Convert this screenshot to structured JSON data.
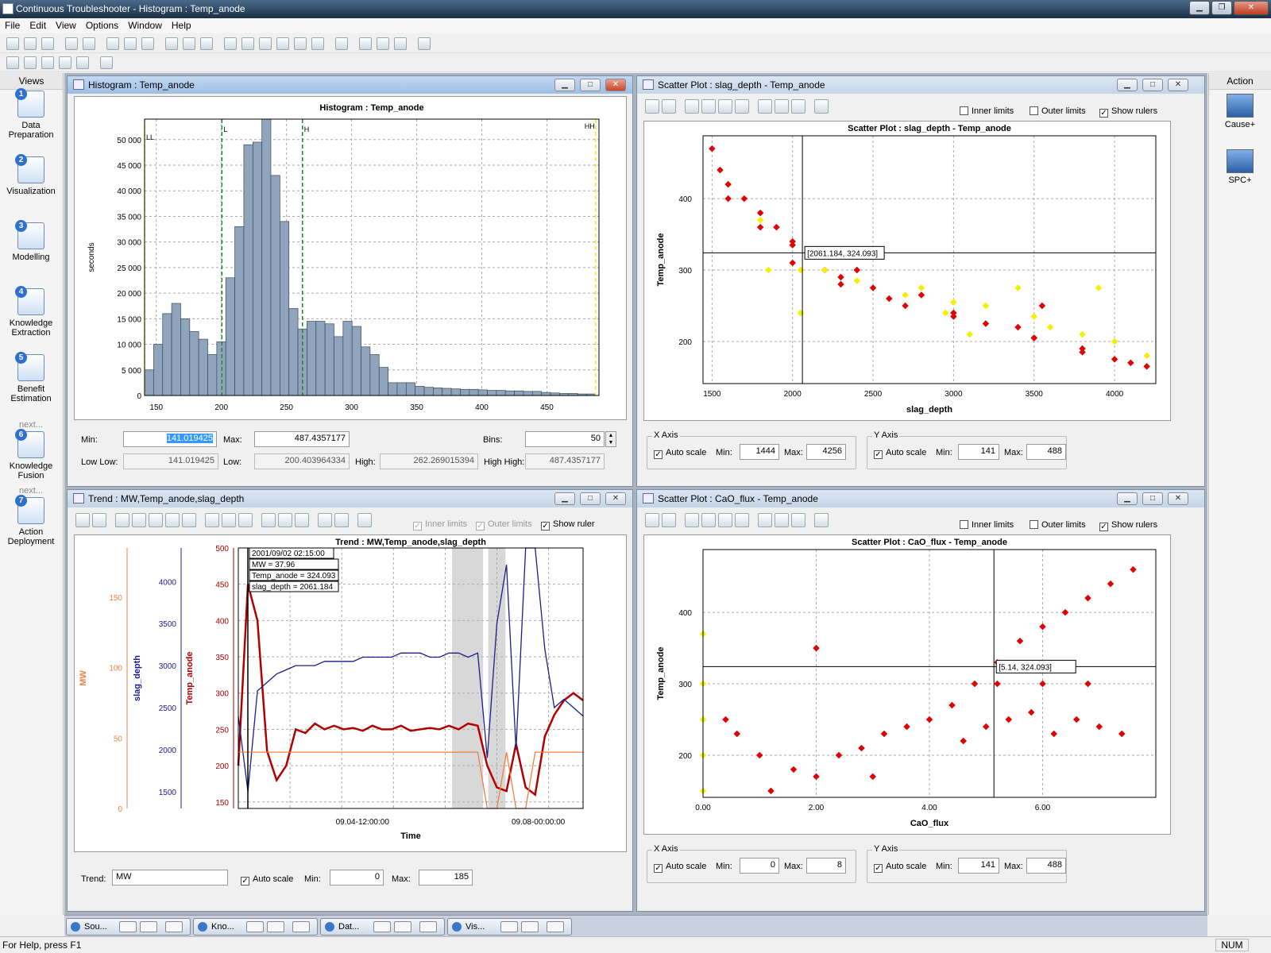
{
  "app": {
    "title": "Continuous Troubleshooter - Histogram : Temp_anode",
    "menus": [
      "File",
      "Edit",
      "View",
      "Options",
      "Window",
      "Help"
    ]
  },
  "views": {
    "header": "Views",
    "items": [
      {
        "num": "1",
        "label": "Data\nPreparation",
        "next": ""
      },
      {
        "num": "2",
        "label": "Visualization",
        "next": ""
      },
      {
        "num": "3",
        "label": "Modelling",
        "next": ""
      },
      {
        "num": "4",
        "label": "Knowledge\nExtraction",
        "next": ""
      },
      {
        "num": "5",
        "label": "Benefit\nEstimation",
        "next": ""
      },
      {
        "num": "6",
        "label": "Knowledge\nFusion",
        "next": "next..."
      },
      {
        "num": "7",
        "label": "Action\nDeployment",
        "next": "next..."
      }
    ]
  },
  "action": {
    "header": "Action",
    "items": [
      "Cause+",
      "SPC+"
    ]
  },
  "histogram": {
    "window_title": "Histogram : Temp_anode",
    "plot_title": "Histogram : Temp_anode",
    "ylabel": "seconds",
    "min_label": "Min:",
    "min_value": "141.019425",
    "max_label": "Max:",
    "max_value": "487.4357177",
    "bins_label": "Bins:",
    "bins_value": "50",
    "lowlow_label": "Low Low:",
    "lowlow_value": "141.019425",
    "low_label": "Low:",
    "low_value": "200.403964334",
    "high_label": "High:",
    "high_value": "262.269015394",
    "highhigh_label": "High High:",
    "highhigh_value": "487.4357177"
  },
  "scatter1": {
    "window_title": "Scatter Plot : slag_depth - Temp_anode",
    "plot_title": "Scatter Plot : slag_depth - Temp_anode",
    "inner": "Inner limits",
    "outer": "Outer limits",
    "rulers": "Show rulers",
    "tooltip": "[2061.184, 324.093]",
    "xaxis": "X Axis",
    "yaxis": "Y Axis",
    "auto": "Auto scale",
    "min_label": "Min:",
    "max_label": "Max:",
    "xmin": "1444",
    "xmax": "4256",
    "ymin": "141",
    "ymax": "488"
  },
  "scatter2": {
    "window_title": "Scatter Plot : CaO_flux - Temp_anode",
    "plot_title": "Scatter Plot : CaO_flux - Temp_anode",
    "inner": "Inner limits",
    "outer": "Outer limits",
    "rulers": "Show rulers",
    "tooltip": "[5.14, 324.093]",
    "xaxis": "X Axis",
    "yaxis": "Y Axis",
    "auto": "Auto scale",
    "min_label": "Min:",
    "max_label": "Max:",
    "xmin": "0",
    "xmax": "8",
    "ymin": "141",
    "ymax": "488"
  },
  "trend": {
    "window_title": "Trend : MW,Temp_anode,slag_depth",
    "plot_title": "Trend : MW,Temp_anode,slag_depth",
    "inner": "Inner limits",
    "outer": "Outer limits",
    "ruler": "Show ruler",
    "tooltip": [
      "2001/09/02 02:15:00",
      "MW = 37.96",
      "Temp_anode = 324.093",
      "slag_depth = 2061.184"
    ],
    "trend_label": "Trend:",
    "trend_value": "MW",
    "auto": "Auto scale",
    "min_label": "Min:",
    "max_label": "Max:",
    "min_value": "0",
    "max_value": "185"
  },
  "taskbar": [
    "Sou...",
    "Kno...",
    "Dat...",
    "Vis..."
  ],
  "status": {
    "help": "For Help, press F1",
    "num": "NUM"
  },
  "colors": {
    "hist_bar": "#8fa5bd",
    "red": "#e00000",
    "yellow": "#f5f000",
    "mw": "#f08040",
    "temp": "#b00000",
    "slag": "#1c1c8c"
  },
  "chart_data": [
    {
      "type": "bar",
      "title": "Histogram : Temp_anode",
      "xlabel": "",
      "ylabel": "seconds",
      "xlim": [
        141,
        490
      ],
      "ylim": [
        0,
        54000
      ],
      "x_ticks": [
        "150",
        "200",
        "250",
        "300",
        "350",
        "400",
        "450"
      ],
      "y_ticks": [
        "0",
        "5 000",
        "10 000",
        "15 000",
        "20 000",
        "25 000",
        "30 000",
        "35 000",
        "40 000",
        "45 000",
        "50 000"
      ],
      "bin_start": 141.02,
      "bin_width": 6.928,
      "values": [
        5000,
        10000,
        16000,
        18000,
        15000,
        12500,
        11000,
        8000,
        10500,
        23000,
        33000,
        49000,
        49500,
        54000,
        43000,
        34000,
        17000,
        13000,
        14500,
        14500,
        14000,
        11500,
        14500,
        13500,
        9500,
        8000,
        5500,
        2500,
        2500,
        2500,
        1800,
        1600,
        1500,
        1400,
        1300,
        1200,
        1200,
        1100,
        1000,
        1000,
        900,
        900,
        800,
        800,
        600,
        500,
        400,
        400,
        300,
        300
      ],
      "limits": [
        {
          "name": "LL",
          "value": 141.02,
          "color": "yellow"
        },
        {
          "name": "L",
          "value": 200.4,
          "color": "green"
        },
        {
          "name": "H",
          "value": 262.27,
          "color": "green"
        },
        {
          "name": "HH",
          "value": 487.44,
          "color": "yellow"
        }
      ]
    },
    {
      "type": "scatter",
      "title": "Scatter Plot : slag_depth - Temp_anode",
      "xlabel": "slag_depth",
      "ylabel": "Temp_anode",
      "xlim": [
        1444,
        4256
      ],
      "ylim": [
        141,
        488
      ],
      "x_ticks": [
        "1500",
        "2000",
        "2500",
        "3000",
        "3500",
        "4000"
      ],
      "y_ticks": [
        "200",
        "300",
        "400"
      ],
      "ruler": [
        2061.184,
        324.093
      ],
      "series": [
        {
          "color": "red",
          "points": [
            [
              1500,
              470
            ],
            [
              1550,
              440
            ],
            [
              1600,
              420
            ],
            [
              1700,
              400
            ],
            [
              1800,
              380
            ],
            [
              1900,
              360
            ],
            [
              2000,
              335
            ],
            [
              2100,
              320
            ],
            [
              2200,
              300
            ],
            [
              2300,
              290
            ],
            [
              2500,
              275
            ],
            [
              2700,
              250
            ],
            [
              3000,
              235
            ],
            [
              3200,
              225
            ],
            [
              3500,
              205
            ],
            [
              3800,
              185
            ],
            [
              4000,
              175
            ],
            [
              4200,
              165
            ],
            [
              1600,
              400
            ],
            [
              1800,
              360
            ],
            [
              2000,
              310
            ],
            [
              2300,
              280
            ],
            [
              2600,
              260
            ],
            [
              3000,
              240
            ],
            [
              3400,
              220
            ],
            [
              3800,
              190
            ],
            [
              4100,
              170
            ],
            [
              3550,
              250
            ],
            [
              3500,
              205
            ],
            [
              2000,
              340
            ],
            [
              2400,
              300
            ],
            [
              2800,
              265
            ]
          ]
        },
        {
          "color": "yellow",
          "points": [
            [
              1800,
              370
            ],
            [
              1850,
              300
            ],
            [
              2050,
              300
            ],
            [
              2050,
              240
            ],
            [
              2200,
              300
            ],
            [
              2400,
              285
            ],
            [
              2700,
              265
            ],
            [
              3000,
              255
            ],
            [
              3200,
              250
            ],
            [
              3500,
              235
            ],
            [
              3800,
              210
            ],
            [
              3900,
              275
            ],
            [
              3400,
              275
            ],
            [
              2800,
              275
            ],
            [
              4000,
              200
            ],
            [
              4200,
              180
            ],
            [
              3600,
              220
            ],
            [
              2950,
              240
            ],
            [
              3100,
              210
            ]
          ]
        }
      ]
    },
    {
      "type": "line",
      "title": "Trend : MW,Temp_anode,slag_depth",
      "xlabel": "Time",
      "x_ticks": [
        "09.04-12:00:00",
        "09.08-00:00:00"
      ],
      "axes": [
        {
          "name": "MW",
          "color": "mw",
          "ticks": [
            "0",
            "50",
            "100",
            "150"
          ],
          "range": [
            0,
            185
          ]
        },
        {
          "name": "slag_depth",
          "color": "slag",
          "ticks": [
            "1500",
            "2000",
            "2500",
            "3000",
            "3500",
            "4000"
          ],
          "range": [
            1300,
            4400
          ]
        },
        {
          "name": "Temp_anode",
          "color": "temp",
          "ticks": [
            "150",
            "200",
            "250",
            "300",
            "350",
            "400",
            "450",
            "500"
          ],
          "range": [
            141,
            500
          ]
        }
      ],
      "series": [
        {
          "name": "Temp_anode",
          "color": "temp",
          "values": [
            200,
            450,
            400,
            220,
            180,
            200,
            250,
            245,
            258,
            250,
            255,
            250,
            252,
            248,
            255,
            250,
            250,
            255,
            248,
            250,
            252,
            250,
            255,
            250,
            258,
            255,
            200,
            170,
            165,
            230,
            170,
            160,
            240,
            270,
            290,
            300,
            290
          ]
        },
        {
          "name": "slag_depth",
          "color": "slag",
          "values": [
            2400,
            1500,
            2700,
            2800,
            2900,
            2950,
            3000,
            3000,
            3000,
            3050,
            3050,
            3050,
            3050,
            3100,
            3100,
            3100,
            3100,
            3150,
            3150,
            3150,
            3100,
            3100,
            3150,
            3150,
            3100,
            3150,
            1900,
            3500,
            4200,
            2000,
            4400,
            4400,
            3200,
            2500,
            2600,
            2500,
            2400
          ]
        },
        {
          "name": "MW",
          "color": "mw",
          "values": [
            40,
            40,
            40,
            40,
            40,
            40,
            40,
            40,
            40,
            40,
            40,
            40,
            40,
            40,
            40,
            40,
            40,
            40,
            40,
            40,
            40,
            40,
            40,
            40,
            40,
            40,
            0,
            0,
            40,
            0,
            0,
            40,
            40,
            40,
            40,
            40,
            40
          ]
        }
      ]
    },
    {
      "type": "scatter",
      "title": "Scatter Plot : CaO_flux - Temp_anode",
      "xlabel": "CaO_flux",
      "ylabel": "Temp_anode",
      "xlim": [
        0,
        8
      ],
      "ylim": [
        141,
        488
      ],
      "x_ticks": [
        "0.00",
        "2.00",
        "4.00",
        "6.00"
      ],
      "y_ticks": [
        "200",
        "300",
        "400"
      ],
      "ruler": [
        5.14,
        324.093
      ],
      "series": [
        {
          "color": "red",
          "points": [
            [
              1.2,
              150
            ],
            [
              1.6,
              180
            ],
            [
              2.0,
              170
            ],
            [
              2.4,
              200
            ],
            [
              2.8,
              210
            ],
            [
              3.2,
              230
            ],
            [
              3.6,
              240
            ],
            [
              4.0,
              250
            ],
            [
              4.4,
              270
            ],
            [
              4.8,
              300
            ],
            [
              5.2,
              330
            ],
            [
              5.6,
              360
            ],
            [
              6.0,
              380
            ],
            [
              6.4,
              400
            ],
            [
              6.8,
              420
            ],
            [
              7.2,
              440
            ],
            [
              7.6,
              460
            ],
            [
              4.6,
              220
            ],
            [
              5.0,
              240
            ],
            [
              5.4,
              250
            ],
            [
              5.8,
              260
            ],
            [
              6.2,
              230
            ],
            [
              6.6,
              250
            ],
            [
              7.0,
              240
            ],
            [
              7.4,
              230
            ],
            [
              5.2,
              300
            ],
            [
              6.0,
              300
            ],
            [
              6.8,
              300
            ],
            [
              2.0,
              350
            ],
            [
              0.4,
              250
            ],
            [
              0.6,
              230
            ],
            [
              3.0,
              170
            ],
            [
              1.0,
              200
            ]
          ]
        },
        {
          "color": "yellow",
          "points": [
            [
              0.0,
              150
            ],
            [
              0.0,
              200
            ],
            [
              0.0,
              250
            ],
            [
              0.0,
              300
            ],
            [
              0.0,
              370
            ]
          ]
        }
      ]
    }
  ]
}
